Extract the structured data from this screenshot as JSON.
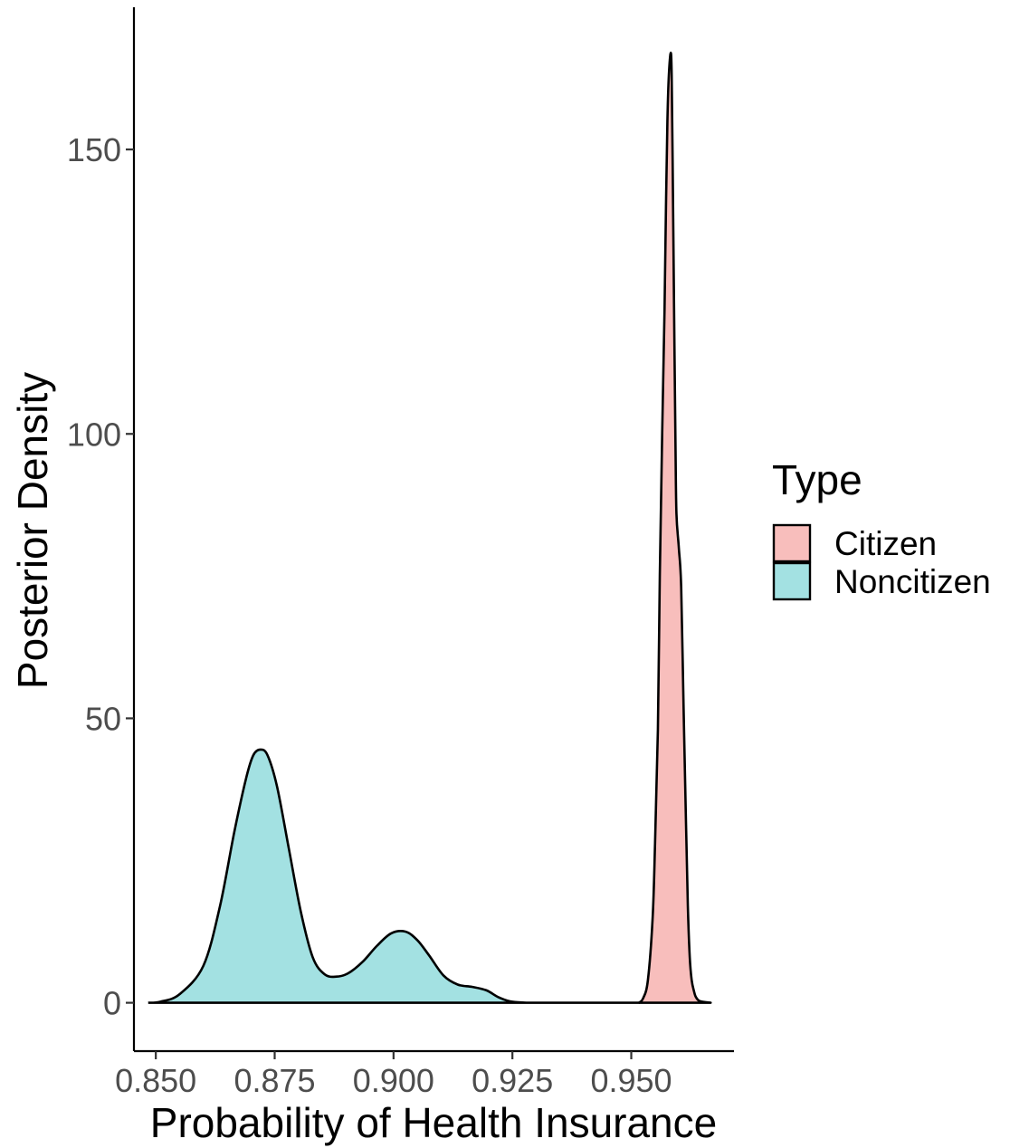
{
  "chart_data": {
    "type": "area",
    "xlabel": "Probability of Health Insurance",
    "ylabel": "Posterior Density",
    "xlim": [
      0.8454,
      0.9716
    ],
    "ylim": [
      -8.5,
      175
    ],
    "x_ticks": [
      0.85,
      0.875,
      0.9,
      0.925,
      0.95
    ],
    "x_tick_labels": [
      "0.850",
      "0.875",
      "0.900",
      "0.925",
      "0.950"
    ],
    "y_ticks": [
      0,
      50,
      100,
      150
    ],
    "y_tick_labels": [
      "0",
      "50",
      "100",
      "150"
    ],
    "grid": false,
    "legend": {
      "title": "Type",
      "position": "right",
      "entries": [
        "Citizen",
        "Noncitizen"
      ]
    },
    "series": [
      {
        "name": "Citizen",
        "color": "#F8BEBC",
        "x": [
          0.9516,
          0.9525,
          0.9535,
          0.9545,
          0.955,
          0.9556,
          0.956,
          0.9565,
          0.957,
          0.9573,
          0.9576,
          0.9579,
          0.9583,
          0.9585,
          0.9587,
          0.959,
          0.9593,
          0.9595,
          0.96,
          0.9605,
          0.961,
          0.9615,
          0.9619,
          0.9623,
          0.9627,
          0.9632,
          0.9636,
          0.9644,
          0.9667
        ],
        "y": [
          0,
          0.8,
          4,
          15,
          28,
          48,
          75,
          100,
          122,
          140,
          155,
          163,
          167,
          163,
          148,
          122,
          98,
          86,
          80,
          73,
          52,
          32,
          17,
          8,
          4,
          2,
          1,
          0.3,
          0
        ]
      },
      {
        "name": "Noncitizen",
        "color": "#A3E1E2",
        "x": [
          0.8484,
          0.851,
          0.855,
          0.86,
          0.8635,
          0.8665,
          0.869,
          0.8705,
          0.872,
          0.8735,
          0.8755,
          0.878,
          0.8805,
          0.883,
          0.8855,
          0.888,
          0.8905,
          0.8935,
          0.8965,
          0.8995,
          0.9025,
          0.905,
          0.9075,
          0.9105,
          0.9135,
          0.9165,
          0.9195,
          0.922,
          0.9245,
          0.9275,
          0.931,
          0.9405,
          0.9516
        ],
        "y": [
          0,
          0.2,
          1.5,
          6.5,
          17,
          30,
          39.5,
          43.5,
          44.5,
          43.5,
          38,
          27,
          16,
          8,
          5,
          4.6,
          5.2,
          7.2,
          10,
          12.2,
          12.5,
          11,
          8.3,
          4.8,
          3.2,
          2.8,
          2.2,
          1,
          0.25,
          0.03,
          0,
          0,
          0
        ]
      }
    ]
  }
}
